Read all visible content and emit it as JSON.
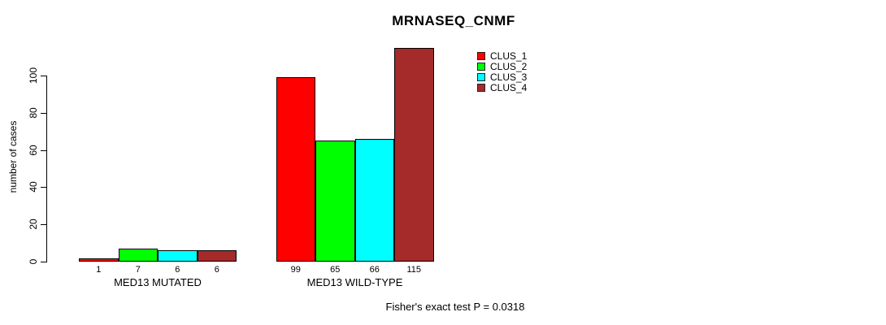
{
  "title": "MRNASEQ_CNMF",
  "y_axis_label": "number of cases",
  "annotation": "Fisher's exact test P = 0.0318",
  "colors": {
    "clus_1": "#FF0000",
    "clus_2": "#00FF00",
    "clus_3": "#00FFFF",
    "clus_4": "#A52A2A",
    "axis": "#000000",
    "background": "#FFFFFF"
  },
  "chart_data": {
    "type": "bar",
    "title": "MRNASEQ_CNMF",
    "xlabel": "",
    "ylabel": "number of cases",
    "categories": [
      "MED13 MUTATED",
      "MED13 WILD-TYPE"
    ],
    "series": [
      {
        "name": "CLUS_1",
        "color": "#FF0000",
        "values": [
          1,
          99
        ]
      },
      {
        "name": "CLUS_2",
        "color": "#00FF00",
        "values": [
          7,
          65
        ]
      },
      {
        "name": "CLUS_3",
        "color": "#00FFFF",
        "values": [
          6,
          66
        ]
      },
      {
        "name": "CLUS_4",
        "color": "#A52A2A",
        "values": [
          6,
          115
        ]
      }
    ],
    "yticks": [
      0,
      20,
      40,
      60,
      80,
      100
    ],
    "ylim": [
      0,
      100
    ],
    "grid": false,
    "bar_value_labels_shown": true,
    "legend_position": "top-right",
    "annotation": "Fisher's exact test P = 0.0318"
  }
}
